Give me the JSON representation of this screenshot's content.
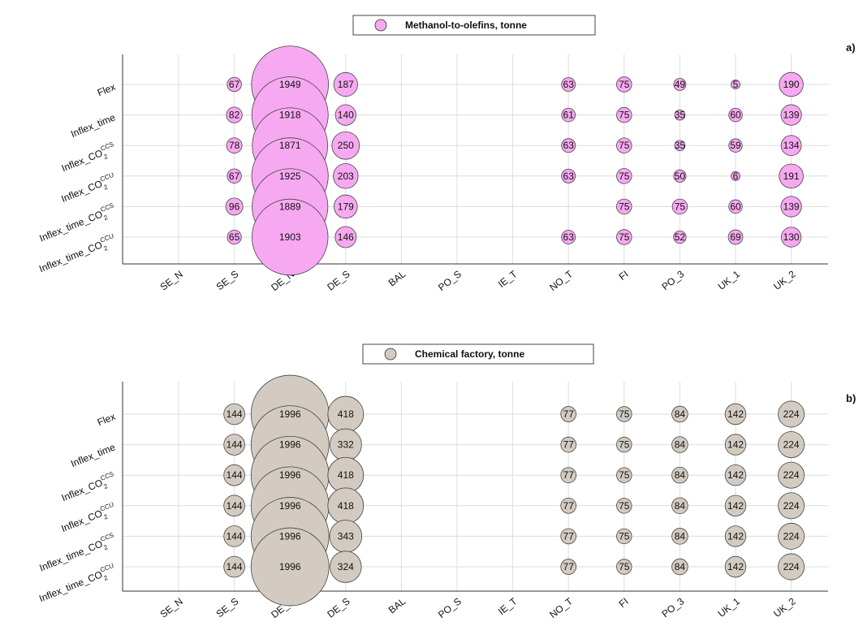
{
  "chart_data": [
    {
      "type": "bubble",
      "panel_label": "a)",
      "legend": "Methanol-to-olefins, tonne",
      "color": "#f6a9f0",
      "categories": [
        "SE_N",
        "SE_S",
        "DE_N",
        "DE_S",
        "BAL",
        "PO_S",
        "IE_T",
        "NO_T",
        "FI",
        "PO_3",
        "UK_1",
        "UK_2"
      ],
      "rows": [
        {
          "label": "Flex",
          "base": "Flex",
          "sup": "",
          "sub": ""
        },
        {
          "label": "Inflex_time",
          "base": "Inflex_time",
          "sup": "",
          "sub": ""
        },
        {
          "label": "Inflex_CO2CCS",
          "base": "Inflex_CO",
          "sup": "CCS",
          "sub": "2"
        },
        {
          "label": "Inflex_CO2CCU",
          "base": "Inflex_CO",
          "sup": "CCU",
          "sub": "2"
        },
        {
          "label": "Inflex_time_CO2CCS",
          "base": "Inflex_time_CO",
          "sup": "CCS",
          "sub": "2"
        },
        {
          "label": "Inflex_time_CO2CCU",
          "base": "Inflex_time_CO",
          "sup": "CCU",
          "sub": "2"
        }
      ],
      "values": [
        [
          null,
          67,
          1949,
          187,
          null,
          null,
          null,
          63,
          75,
          49,
          5,
          190
        ],
        [
          null,
          82,
          1918,
          140,
          null,
          null,
          null,
          61,
          75,
          35,
          60,
          139
        ],
        [
          null,
          78,
          1871,
          250,
          null,
          null,
          null,
          63,
          75,
          35,
          59,
          134
        ],
        [
          null,
          67,
          1925,
          203,
          null,
          null,
          null,
          63,
          75,
          50,
          6,
          191
        ],
        [
          null,
          96,
          1889,
          179,
          null,
          null,
          null,
          null,
          75,
          75,
          60,
          139
        ],
        [
          null,
          65,
          1903,
          146,
          null,
          null,
          null,
          63,
          75,
          52,
          69,
          130
        ]
      ]
    },
    {
      "type": "bubble",
      "panel_label": "b)",
      "legend": "Chemical factory, tonne",
      "color": "#d3cbc1",
      "categories": [
        "SE_N",
        "SE_S",
        "DE_N",
        "DE_S",
        "BAL",
        "PO_S",
        "IE_T",
        "NO_T",
        "FI",
        "PO_3",
        "UK_1",
        "UK_2"
      ],
      "rows": [
        {
          "label": "Flex",
          "base": "Flex",
          "sup": "",
          "sub": ""
        },
        {
          "label": "Inflex_time",
          "base": "Inflex_time",
          "sup": "",
          "sub": ""
        },
        {
          "label": "Inflex_CO2CCS",
          "base": "Inflex_CO",
          "sup": "CCS",
          "sub": "2"
        },
        {
          "label": "Inflex_CO2CCU",
          "base": "Inflex_CO",
          "sup": "CCU",
          "sub": "2"
        },
        {
          "label": "Inflex_time_CO2CCS",
          "base": "Inflex_time_CO",
          "sup": "CCS",
          "sub": "2"
        },
        {
          "label": "Inflex_time_CO2CCU",
          "base": "Inflex_time_CO",
          "sup": "CCU",
          "sub": "2"
        }
      ],
      "values": [
        [
          null,
          144,
          1996,
          418,
          null,
          null,
          null,
          77,
          75,
          84,
          142,
          224
        ],
        [
          null,
          144,
          1996,
          332,
          null,
          null,
          null,
          77,
          75,
          84,
          142,
          224
        ],
        [
          null,
          144,
          1996,
          418,
          null,
          null,
          null,
          77,
          75,
          84,
          142,
          224
        ],
        [
          null,
          144,
          1996,
          418,
          null,
          null,
          null,
          77,
          75,
          84,
          142,
          224
        ],
        [
          null,
          144,
          1996,
          343,
          null,
          null,
          null,
          77,
          75,
          84,
          142,
          224
        ],
        [
          null,
          144,
          1996,
          324,
          null,
          null,
          null,
          77,
          75,
          84,
          142,
          224
        ]
      ]
    }
  ]
}
